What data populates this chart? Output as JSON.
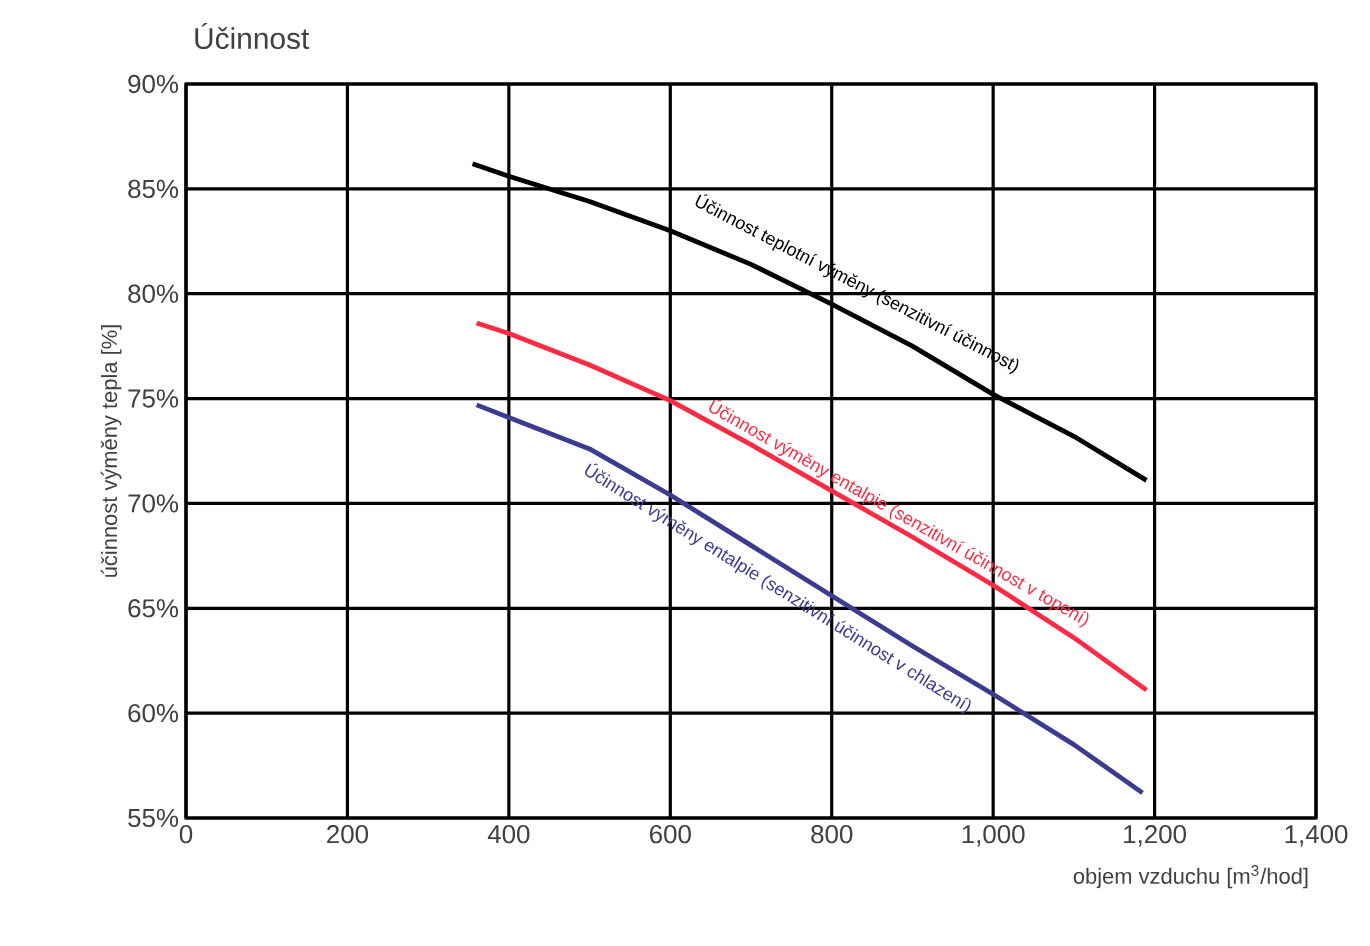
{
  "chart_data": {
    "type": "line",
    "title": "Účinnost",
    "xlabel": "objem vzduchu [m$^{3}$/hod]",
    "ylabel": "účinnost výměny tepla [%]",
    "xlim": [
      0,
      1400
    ],
    "ylim": [
      55,
      90
    ],
    "xticks": [
      0,
      200,
      400,
      600,
      800,
      {
        "value": 1000,
        "label": "1,000"
      },
      {
        "value": 1200,
        "label": "1,200"
      },
      {
        "value": 1400,
        "label": "1,400"
      }
    ],
    "yticks": [
      {
        "value": 55,
        "label": "55%"
      },
      {
        "value": 60,
        "label": "60%"
      },
      {
        "value": 65,
        "label": "65%"
      },
      {
        "value": 70,
        "label": "70%"
      },
      {
        "value": 75,
        "label": "75%"
      },
      {
        "value": 80,
        "label": "80%"
      },
      {
        "value": 85,
        "label": "85%"
      },
      {
        "value": 90,
        "label": "90%"
      }
    ],
    "grid": true,
    "marker": "none",
    "line_style": "solid",
    "series": [
      {
        "name": "Účinnost teplotní výměny (senzitivní účinnost)",
        "color": "#000000",
        "x": [
          355,
          400,
          500,
          600,
          700,
          800,
          900,
          1000,
          1100,
          1190
        ],
        "values": [
          86.2,
          85.6,
          84.4,
          83.0,
          81.4,
          79.5,
          77.5,
          75.2,
          73.2,
          71.1
        ]
      },
      {
        "name": "Účinnost výměny entalpie (senzitivní účinnost v topení)",
        "color": "#ff2a44",
        "x": [
          360,
          400,
          500,
          600,
          700,
          800,
          900,
          1000,
          1100,
          1190
        ],
        "values": [
          78.6,
          78.1,
          76.6,
          74.9,
          72.8,
          70.6,
          68.4,
          66.1,
          63.6,
          61.1
        ]
      },
      {
        "name": "Účinnost výměny entalpie (senzitivní účinnost v chlazení)",
        "color": "#3b3b8f",
        "x": [
          360,
          400,
          500,
          600,
          700,
          800,
          900,
          1000,
          1100,
          1185
        ],
        "values": [
          74.7,
          74.1,
          72.6,
          70.4,
          68.0,
          65.6,
          63.2,
          60.9,
          58.5,
          56.2
        ]
      }
    ]
  }
}
